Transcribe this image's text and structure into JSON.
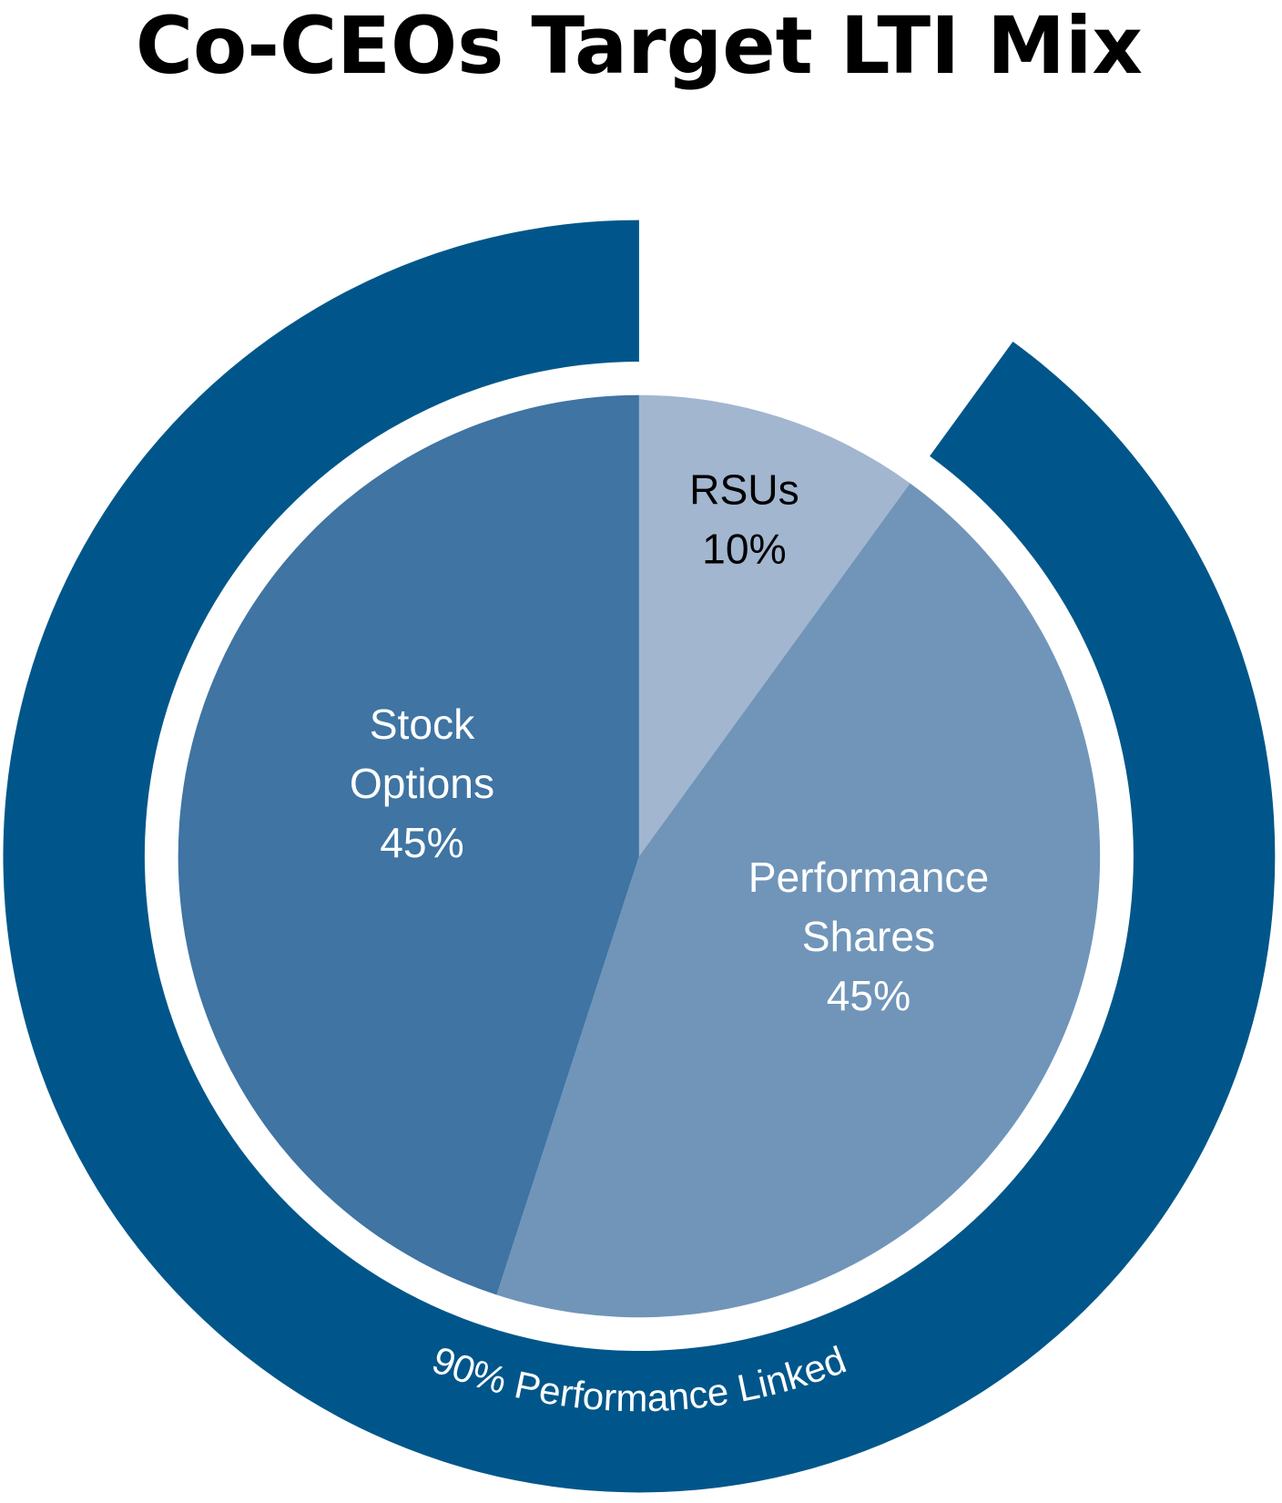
{
  "chart_data": {
    "type": "pie",
    "title": "Co-CEOs Target LTI Mix",
    "slices": [
      {
        "label_lines": [
          "RSUs"
        ],
        "value": 10,
        "value_label": "10%",
        "color": "#A2B6CF",
        "text_color": "#000000"
      },
      {
        "label_lines": [
          "Performance",
          "Shares"
        ],
        "value": 45,
        "value_label": "45%",
        "color": "#7095B9",
        "text_color": "#FFFFFF"
      },
      {
        "label_lines": [
          "Stock",
          "Options"
        ],
        "value": 45,
        "value_label": "45%",
        "color": "#3F74A3",
        "text_color": "#FFFFFF"
      }
    ],
    "outer_ring": {
      "label": "90% Performance Linked",
      "value": 90,
      "color": "#00568A"
    }
  }
}
